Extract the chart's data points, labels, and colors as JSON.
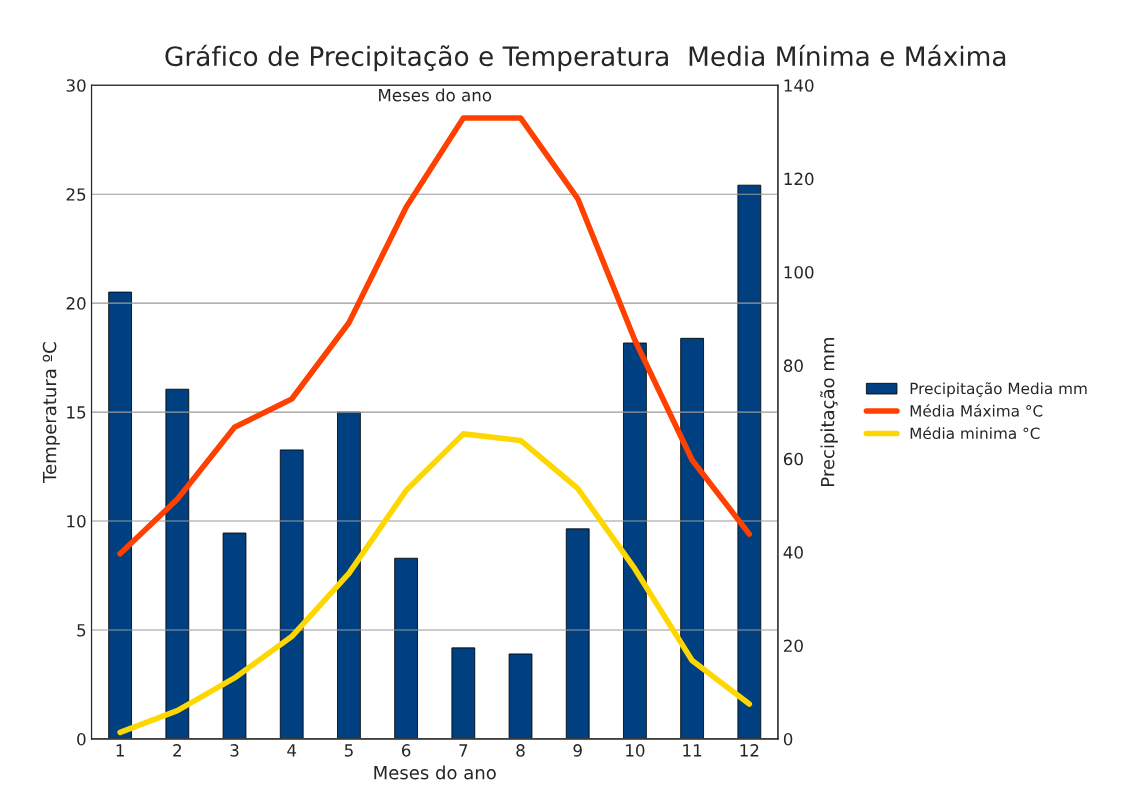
{
  "chart_data": {
    "type": "bar",
    "title": "Gráfico de Precipitação e Temperatura  Media Mínima e Máxima",
    "xlabel": "Meses do ano",
    "ylabel": "Temperatura ºC",
    "y2label": "Precipitação mm",
    "annotations": [
      "Meses do ano"
    ],
    "categories": [
      "1",
      "2",
      "3",
      "4",
      "5",
      "6",
      "7",
      "8",
      "9",
      "10",
      "11",
      "12"
    ],
    "series": [
      {
        "name": "Precipitação Media mm",
        "axis": "y2",
        "color": "#004080",
        "values": [
          95.7,
          74.9,
          44.1,
          61.9,
          70.0,
          38.7,
          19.5,
          18.2,
          45.0,
          84.8,
          85.8,
          118.6
        ]
      },
      {
        "name": "Média Máxima °C",
        "type": "line",
        "color": "#ff4000",
        "values": [
          8.5,
          11.0,
          14.3,
          15.6,
          19.1,
          24.4,
          28.5,
          28.5,
          24.8,
          18.3,
          12.8,
          9.4
        ]
      },
      {
        "name": "Média minima °C",
        "type": "line",
        "color": "#ffd700",
        "values": [
          0.3,
          1.3,
          2.8,
          4.7,
          7.6,
          11.4,
          14.0,
          13.7,
          11.5,
          7.8,
          3.6,
          1.6
        ]
      }
    ],
    "ylim": [
      0,
      30
    ],
    "yticks": [
      0,
      5,
      10,
      15,
      20,
      25,
      30
    ],
    "y2lim": [
      0,
      140
    ],
    "y2ticks": [
      0,
      20,
      40,
      60,
      80,
      100,
      120,
      140
    ],
    "grid": "y",
    "legend": "right",
    "marker": "none",
    "line_style": "solid"
  }
}
